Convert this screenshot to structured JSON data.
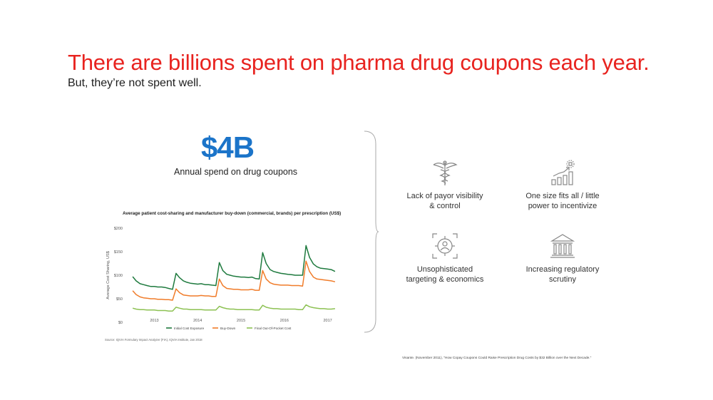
{
  "headline": {
    "title": "There are billions spent on pharma drug coupons each year.",
    "subtitle": "But, they’re not spent well."
  },
  "stat": {
    "value": "$4B",
    "label": "Annual spend on drug coupons"
  },
  "chart_data": {
    "type": "line",
    "title": "Average patient cost-sharing and manufacturer buy-down (commercial, brands) per prescription (US$)",
    "ylabel": "Average Cost Sharing, US$",
    "ylim": [
      0,
      200
    ],
    "yticks": [
      "$0",
      "$50",
      "$100",
      "$150",
      "$200"
    ],
    "x_tick_labels": [
      "2013",
      "2014",
      "2015",
      "2016",
      "2017"
    ],
    "x_tick_positions": [
      2013.5,
      2014.5,
      2015.5,
      2016.5,
      2017.5
    ],
    "xlim": [
      2012.9,
      2018.0
    ],
    "series": [
      {
        "name": "Initial Cost Exposure",
        "color": "#1e7a3e",
        "x": [
          2013.0,
          2013.08,
          2013.17,
          2013.25,
          2013.33,
          2013.42,
          2013.5,
          2013.58,
          2013.67,
          2013.75,
          2013.83,
          2013.92,
          2014.0,
          2014.08,
          2014.17,
          2014.25,
          2014.33,
          2014.42,
          2014.5,
          2014.58,
          2014.67,
          2014.75,
          2014.83,
          2014.92,
          2015.0,
          2015.08,
          2015.17,
          2015.25,
          2015.33,
          2015.42,
          2015.5,
          2015.58,
          2015.67,
          2015.75,
          2015.83,
          2015.92,
          2016.0,
          2016.08,
          2016.17,
          2016.25,
          2016.33,
          2016.42,
          2016.5,
          2016.58,
          2016.67,
          2016.75,
          2016.83,
          2016.92,
          2017.0,
          2017.08,
          2017.17,
          2017.25,
          2017.33,
          2017.42,
          2017.5,
          2017.58,
          2017.67
        ],
        "values": [
          97,
          88,
          82,
          80,
          78,
          76,
          76,
          75,
          75,
          74,
          72,
          70,
          104,
          95,
          88,
          85,
          83,
          82,
          81,
          82,
          80,
          80,
          79,
          78,
          127,
          110,
          102,
          100,
          98,
          97,
          96,
          96,
          95,
          96,
          93,
          92,
          148,
          125,
          112,
          108,
          106,
          104,
          103,
          102,
          101,
          100,
          100,
          100,
          163,
          138,
          124,
          118,
          115,
          114,
          113,
          112,
          108
        ]
      },
      {
        "name": "Buy-Down",
        "color": "#f07c2a",
        "x": [
          2013.0,
          2013.08,
          2013.17,
          2013.25,
          2013.33,
          2013.42,
          2013.5,
          2013.58,
          2013.67,
          2013.75,
          2013.83,
          2013.92,
          2014.0,
          2014.08,
          2014.17,
          2014.25,
          2014.33,
          2014.42,
          2014.5,
          2014.58,
          2014.67,
          2014.75,
          2014.83,
          2014.92,
          2015.0,
          2015.08,
          2015.17,
          2015.25,
          2015.33,
          2015.42,
          2015.5,
          2015.58,
          2015.67,
          2015.75,
          2015.83,
          2015.92,
          2016.0,
          2016.08,
          2016.17,
          2016.25,
          2016.33,
          2016.42,
          2016.5,
          2016.58,
          2016.67,
          2016.75,
          2016.83,
          2016.92,
          2017.0,
          2017.08,
          2017.17,
          2017.25,
          2017.33,
          2017.42,
          2017.5,
          2017.58,
          2017.67
        ],
        "values": [
          67,
          59,
          54,
          52,
          51,
          50,
          50,
          49,
          49,
          48,
          48,
          47,
          71,
          63,
          58,
          57,
          56,
          56,
          56,
          57,
          56,
          56,
          55,
          55,
          92,
          78,
          72,
          71,
          70,
          70,
          69,
          69,
          69,
          70,
          68,
          68,
          110,
          92,
          84,
          81,
          80,
          79,
          79,
          79,
          78,
          78,
          78,
          77,
          130,
          108,
          96,
          92,
          91,
          90,
          89,
          88,
          86
        ]
      },
      {
        "name": "Final Out-Of-Pocket Cost",
        "color": "#8cc152",
        "x": [
          2013.0,
          2013.08,
          2013.17,
          2013.25,
          2013.33,
          2013.42,
          2013.5,
          2013.58,
          2013.67,
          2013.75,
          2013.83,
          2013.92,
          2014.0,
          2014.08,
          2014.17,
          2014.25,
          2014.33,
          2014.42,
          2014.5,
          2014.58,
          2014.67,
          2014.75,
          2014.83,
          2014.92,
          2015.0,
          2015.08,
          2015.17,
          2015.25,
          2015.33,
          2015.42,
          2015.5,
          2015.58,
          2015.67,
          2015.75,
          2015.83,
          2015.92,
          2016.0,
          2016.08,
          2016.17,
          2016.25,
          2016.33,
          2016.42,
          2016.5,
          2016.58,
          2016.67,
          2016.75,
          2016.83,
          2016.92,
          2017.0,
          2017.08,
          2017.17,
          2017.25,
          2017.33,
          2017.42,
          2017.5,
          2017.58,
          2017.67
        ],
        "values": [
          30,
          28,
          27,
          27,
          26,
          26,
          26,
          25,
          25,
          25,
          24,
          24,
          32,
          30,
          28,
          28,
          27,
          27,
          27,
          27,
          26,
          26,
          26,
          26,
          34,
          31,
          29,
          28,
          28,
          27,
          27,
          27,
          27,
          27,
          26,
          26,
          36,
          32,
          30,
          29,
          29,
          28,
          28,
          28,
          28,
          28,
          27,
          27,
          37,
          33,
          31,
          30,
          29,
          29,
          28,
          28,
          29
        ]
      }
    ],
    "legend_position": "bottom",
    "grid": false
  },
  "chart_source": "Source: IQVIA Formulary Impact Analyzer (FIA), IQVIA Institute, Jan 2018",
  "features": [
    {
      "icon": "caduceus-icon",
      "label": "Lack of payor visibility\n& control"
    },
    {
      "icon": "growth-chart-icon",
      "label": "One size fits all / little\npower to incentivize"
    },
    {
      "icon": "target-person-icon",
      "label": "Unsophisticated\ntargeting & economics"
    },
    {
      "icon": "courthouse-icon",
      "label": "Increasing regulatory\nscrutiny"
    }
  ],
  "footnote": "Visante. (November 2011), \"How Copay Coupons Could Raise Prescription Drug Costs by $32 Billion over the Next Decade.\""
}
